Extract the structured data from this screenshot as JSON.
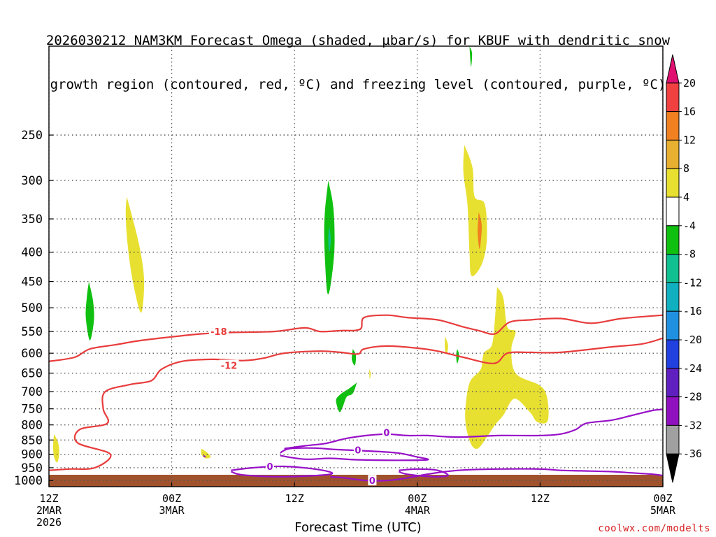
{
  "title": {
    "line1": "2026030212 NAM3KM Forecast Omega (shaded, µbar/s) for KBUF with dendritic snow",
    "line2": "growth region (contoured, red, ºC) and freezing level (contoured, purple, ºC)"
  },
  "credit": "coolwx.com/modelts",
  "chart_data": {
    "type": "heatmap",
    "xlabel": "Forecast Time (UTC)",
    "x_range_hours": [
      0,
      60
    ],
    "x_ticks": [
      {
        "hour": 0,
        "lines": [
          "12Z",
          "2MAR",
          "2026"
        ]
      },
      {
        "hour": 12,
        "lines": [
          "00Z",
          "3MAR"
        ]
      },
      {
        "hour": 24,
        "lines": [
          "12Z"
        ]
      },
      {
        "hour": 36,
        "lines": [
          "00Z",
          "4MAR"
        ]
      },
      {
        "hour": 48,
        "lines": [
          "12Z"
        ]
      },
      {
        "hour": 60,
        "lines": [
          "00Z",
          "5MAR"
        ]
      }
    ],
    "y_scale": "log-pressure",
    "y_range_hpa": [
      1025,
      175
    ],
    "y_ticks": [
      250,
      300,
      350,
      400,
      450,
      500,
      550,
      600,
      650,
      700,
      750,
      800,
      850,
      900,
      950,
      1000
    ],
    "grid": true,
    "colorbar": {
      "labels": [
        20,
        16,
        12,
        8,
        4,
        -4,
        -8,
        -12,
        -16,
        -20,
        -24,
        -28,
        -32,
        -36
      ],
      "colors": [
        "#e01070",
        "#f04040",
        "#f08020",
        "#e8b030",
        "#e8e030",
        "#ffffff",
        "#10c010",
        "#10c090",
        "#10b0c0",
        "#2090e0",
        "#2040e0",
        "#6020c0",
        "#9010c0",
        "#a0a0a0",
        "#000000"
      ]
    },
    "terrain_color": "#a0522d",
    "shaded_regions": [
      {
        "color": "#e8e030",
        "points": [
          [
            7.6,
            320
          ],
          [
            8.1,
            345
          ],
          [
            8.9,
            395
          ],
          [
            9.3,
            450
          ],
          [
            9.0,
            510
          ],
          [
            8.2,
            450
          ],
          [
            7.7,
            390
          ],
          [
            7.5,
            345
          ]
        ]
      },
      {
        "color": "#10c010",
        "points": [
          [
            3.9,
            450
          ],
          [
            4.3,
            485
          ],
          [
            4.4,
            525
          ],
          [
            4.0,
            570
          ],
          [
            3.6,
            520
          ],
          [
            3.7,
            480
          ]
        ]
      },
      {
        "color": "#10c010",
        "points": [
          [
            27.3,
            300
          ],
          [
            27.8,
            335
          ],
          [
            27.9,
            395
          ],
          [
            27.5,
            460
          ],
          [
            27.2,
            470
          ],
          [
            27.0,
            420
          ],
          [
            26.9,
            370
          ],
          [
            27.0,
            335
          ]
        ]
      },
      {
        "color": "#10c090",
        "points": [
          [
            27.4,
            360
          ],
          [
            27.55,
            380
          ],
          [
            27.4,
            400
          ],
          [
            27.3,
            380
          ]
        ]
      },
      {
        "color": "#e8e030",
        "points": [
          [
            40.6,
            260
          ],
          [
            41.4,
            285
          ],
          [
            41.6,
            320
          ],
          [
            42.6,
            330
          ],
          [
            42.8,
            380
          ],
          [
            42.3,
            420
          ],
          [
            41.3,
            440
          ],
          [
            41.1,
            400
          ],
          [
            40.9,
            330
          ],
          [
            40.5,
            290
          ]
        ]
      },
      {
        "color": "#f08020",
        "points": [
          [
            42.0,
            340
          ],
          [
            42.3,
            360
          ],
          [
            42.1,
            395
          ],
          [
            41.9,
            370
          ]
        ]
      },
      {
        "color": "#e8e030",
        "points": [
          [
            43.8,
            460
          ],
          [
            44.4,
            480
          ],
          [
            44.8,
            540
          ],
          [
            45.6,
            550
          ],
          [
            45.2,
            590
          ],
          [
            45.6,
            650
          ],
          [
            47.8,
            680
          ],
          [
            48.5,
            700
          ],
          [
            48.8,
            740
          ],
          [
            48.7,
            790
          ],
          [
            47.7,
            790
          ],
          [
            47.0,
            760
          ],
          [
            45.5,
            720
          ],
          [
            44.4,
            770
          ],
          [
            43.6,
            800
          ],
          [
            42.8,
            840
          ],
          [
            41.9,
            880
          ],
          [
            41.2,
            860
          ],
          [
            40.7,
            790
          ],
          [
            40.8,
            720
          ],
          [
            41.2,
            670
          ],
          [
            42.2,
            640
          ],
          [
            42.5,
            600
          ],
          [
            43.3,
            580
          ],
          [
            43.6,
            520
          ]
        ]
      },
      {
        "color": "#e8e030",
        "points": [
          [
            38.7,
            560
          ],
          [
            39.0,
            580
          ],
          [
            38.9,
            600
          ],
          [
            38.7,
            590
          ]
        ]
      },
      {
        "color": "#10c010",
        "points": [
          [
            29.7,
            590
          ],
          [
            30.0,
            605
          ],
          [
            29.9,
            630
          ],
          [
            29.6,
            615
          ]
        ]
      },
      {
        "color": "#10c010",
        "points": [
          [
            30.1,
            675
          ],
          [
            29.7,
            705
          ],
          [
            29.1,
            715
          ],
          [
            28.7,
            745
          ],
          [
            28.4,
            760
          ],
          [
            28.1,
            735
          ],
          [
            28.1,
            720
          ],
          [
            28.6,
            705
          ],
          [
            29.4,
            690
          ]
        ]
      },
      {
        "color": "#10c010",
        "points": [
          [
            39.9,
            590
          ],
          [
            40.1,
            605
          ],
          [
            39.9,
            625
          ],
          [
            39.8,
            605
          ]
        ]
      },
      {
        "color": "#e8e030",
        "points": [
          [
            0.5,
            830
          ],
          [
            0.9,
            860
          ],
          [
            1.0,
            900
          ],
          [
            0.8,
            930
          ],
          [
            0.5,
            910
          ],
          [
            0.4,
            870
          ]
        ]
      },
      {
        "color": "#e8e030",
        "points": [
          [
            14.9,
            880
          ],
          [
            15.5,
            895
          ],
          [
            15.8,
            910
          ],
          [
            15.3,
            915
          ],
          [
            14.9,
            900
          ]
        ]
      },
      {
        "color": "#e8e030",
        "points": [
          [
            31.3,
            640
          ],
          [
            31.45,
            650
          ],
          [
            31.35,
            665
          ]
        ]
      },
      {
        "color": "#10c010",
        "points": [
          [
            41.1,
            175
          ],
          [
            41.35,
            180
          ],
          [
            41.25,
            190
          ]
        ]
      }
    ],
    "contours": [
      {
        "color": "#e83c3c",
        "label": "-18",
        "label_at": [
          16.6,
          550
        ],
        "points": [
          [
            0,
            620
          ],
          [
            2.5,
            610
          ],
          [
            4.0,
            590
          ],
          [
            6.5,
            580
          ],
          [
            9.0,
            570
          ],
          [
            12.0,
            562
          ],
          [
            15.0,
            555
          ],
          [
            18.0,
            552
          ],
          [
            22.0,
            550
          ],
          [
            25.0,
            542
          ],
          [
            26.5,
            550
          ],
          [
            28.5,
            548
          ],
          [
            30.4,
            545
          ],
          [
            30.8,
            520
          ],
          [
            33.0,
            515
          ],
          [
            35.0,
            520
          ],
          [
            38.0,
            525
          ],
          [
            40.5,
            540
          ],
          [
            42.0,
            548
          ],
          [
            43.6,
            555
          ],
          [
            45.0,
            530
          ],
          [
            47.0,
            525
          ],
          [
            50.0,
            522
          ],
          [
            53.0,
            532
          ],
          [
            56.0,
            522
          ],
          [
            60.0,
            515
          ]
        ]
      },
      {
        "color": "#e83c3c",
        "label": "-12",
        "label_at": [
          17.6,
          630
        ],
        "points": [
          [
            0,
            960
          ],
          [
            2.0,
            955
          ],
          [
            4.5,
            950
          ],
          [
            6.0,
            900
          ],
          [
            2.8,
            860
          ],
          [
            3.0,
            815
          ],
          [
            5.7,
            795
          ],
          [
            5.3,
            750
          ],
          [
            5.5,
            700
          ],
          [
            8.0,
            680
          ],
          [
            10.0,
            670
          ],
          [
            11.0,
            640
          ],
          [
            13.0,
            620
          ],
          [
            16.0,
            615
          ],
          [
            19.0,
            618
          ],
          [
            21.0,
            612
          ],
          [
            23.0,
            600
          ],
          [
            26.5,
            595
          ],
          [
            28.5,
            598
          ],
          [
            30.2,
            602
          ],
          [
            30.8,
            590
          ],
          [
            33.0,
            583
          ],
          [
            36.0,
            588
          ],
          [
            38.0,
            595
          ],
          [
            40.5,
            610
          ],
          [
            43.5,
            625
          ],
          [
            44.8,
            600
          ],
          [
            47.0,
            598
          ],
          [
            50.0,
            598
          ],
          [
            55.0,
            585
          ],
          [
            58.0,
            578
          ],
          [
            60.0,
            565
          ]
        ]
      },
      {
        "color": "#9810c8",
        "label": "0",
        "label_at": [
          33.0,
          825
        ],
        "points": [
          [
            23.0,
            880
          ],
          [
            25.0,
            870
          ],
          [
            27.0,
            862
          ],
          [
            29.0,
            845
          ],
          [
            31.0,
            835
          ],
          [
            33.0,
            830
          ],
          [
            35.0,
            835
          ],
          [
            37.0,
            835
          ],
          [
            40.0,
            840
          ],
          [
            44.0,
            835
          ],
          [
            48.0,
            835
          ],
          [
            50.0,
            830
          ],
          [
            51.5,
            815
          ],
          [
            52.5,
            795
          ],
          [
            55.0,
            785
          ],
          [
            57.0,
            770
          ],
          [
            59.0,
            755
          ],
          [
            60.0,
            752
          ]
        ]
      },
      {
        "color": "#9810c8",
        "label": "0",
        "label_at": [
          30.2,
          885
        ],
        "points": [
          [
            22.6,
            895
          ],
          [
            23.5,
            880
          ],
          [
            26.0,
            878
          ],
          [
            28.0,
            883
          ],
          [
            31.0,
            888
          ],
          [
            34.0,
            895
          ],
          [
            36.0,
            910
          ],
          [
            37.0,
            920
          ],
          [
            34.0,
            922
          ],
          [
            30.0,
            920
          ],
          [
            27.5,
            915
          ],
          [
            25.0,
            918
          ],
          [
            22.6,
            905
          ]
        ]
      },
      {
        "color": "#9810c8",
        "label": "0",
        "label_at": [
          21.6,
          945
        ],
        "points": [
          [
            17.8,
            960
          ],
          [
            20.0,
            950
          ],
          [
            23.0,
            945
          ],
          [
            26.5,
            958
          ],
          [
            27.5,
            975
          ],
          [
            23.0,
            985
          ],
          [
            19.0,
            978
          ],
          [
            17.8,
            965
          ]
        ]
      },
      {
        "color": "#9810c8",
        "label": "0",
        "label_at": [
          31.6,
          1000
        ],
        "points": [
          [
            27.5,
            985
          ],
          [
            29.0,
            990
          ],
          [
            31.0,
            1000
          ],
          [
            33.0,
            1000
          ],
          [
            35.0,
            990
          ],
          [
            37.0,
            975
          ],
          [
            40.0,
            960
          ],
          [
            44.0,
            955
          ],
          [
            48.0,
            955
          ],
          [
            50.0,
            960
          ],
          [
            52.0,
            962
          ],
          [
            55.0,
            965
          ],
          [
            57.0,
            970
          ],
          [
            59.0,
            975
          ],
          [
            60.0,
            980
          ]
        ]
      },
      {
        "color": "#9810c8",
        "label": "",
        "label_at": null,
        "points": [
          [
            34.2,
            960
          ],
          [
            36.0,
            955
          ],
          [
            38.0,
            960
          ],
          [
            39.0,
            980
          ],
          [
            37.5,
            985
          ],
          [
            35.0,
            975
          ],
          [
            34.2,
            965
          ]
        ]
      },
      {
        "color": "#9810c8",
        "label": "",
        "label_at": null,
        "points": [
          [
            15.1,
            905
          ],
          [
            15.3,
            910
          ]
        ]
      }
    ]
  }
}
